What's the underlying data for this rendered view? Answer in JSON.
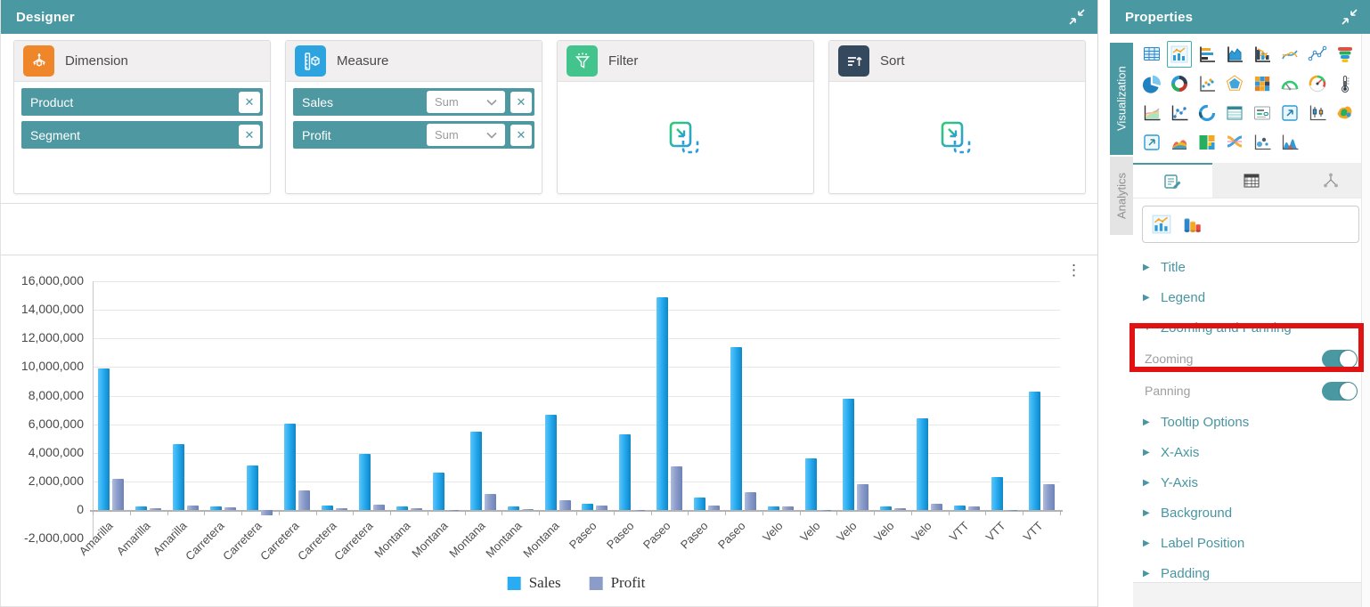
{
  "colors": {
    "accent_teal": "#4a98a2",
    "highlight_red": "#e11212",
    "sales_blue": "#29acf1",
    "profit_slate": "#8b9cc9",
    "dimension_orange": "#f0862a",
    "measure_blue": "#2da4e0",
    "filter_green": "#43c48d",
    "sort_navy": "#34495e"
  },
  "designer": {
    "title": "Designer",
    "dimension": {
      "label": "Dimension",
      "fields": [
        {
          "name": "Product"
        },
        {
          "name": "Segment"
        }
      ]
    },
    "measure": {
      "label": "Measure",
      "fields": [
        {
          "name": "Sales",
          "aggregation": "Sum"
        },
        {
          "name": "Profit",
          "aggregation": "Sum"
        }
      ]
    },
    "filter": {
      "label": "Filter"
    },
    "sort": {
      "label": "Sort"
    }
  },
  "properties": {
    "title": "Properties",
    "side_tabs": [
      {
        "label": "Visualization",
        "active": true
      },
      {
        "label": "Analytics",
        "active": false
      }
    ],
    "visualization_icons": [
      "table-widget",
      "column-chart",
      "bar-chart",
      "area-chart",
      "pareto-chart",
      "spline-chart",
      "line-chart",
      "funnel-chart",
      "pie-chart",
      "doughnut-chart",
      "scatter-chart",
      "polar-chart",
      "heatmap-chart",
      "semi-gauge",
      "circular-gauge",
      "thermometer-gauge",
      "combination-chart",
      "radar-chart",
      "progress-circle",
      "pivot-grid",
      "card-widget",
      "embed-widget",
      "box-whisker-chart",
      "map-widget",
      "image-widget",
      "spline-area-chart",
      "treemap-chart",
      "sankey-chart",
      "bubble-chart",
      "histogram-chart"
    ],
    "selected_icon": "column-chart",
    "property_tabs": [
      "general-settings",
      "data-grid",
      "axes"
    ],
    "subtype_icons": [
      "column-2d",
      "column-3d"
    ],
    "sections": [
      {
        "label": "Title",
        "expanded": false
      },
      {
        "label": "Legend",
        "expanded": false
      },
      {
        "label": "Zooming and Panning",
        "expanded": true
      },
      {
        "label": "Tooltip Options",
        "expanded": false
      },
      {
        "label": "X-Axis",
        "expanded": false
      },
      {
        "label": "Y-Axis",
        "expanded": false
      },
      {
        "label": "Background",
        "expanded": false
      },
      {
        "label": "Label Position",
        "expanded": false
      },
      {
        "label": "Padding",
        "expanded": false
      }
    ],
    "toggles": [
      {
        "label": "Zooming",
        "on": true,
        "highlighted": true
      },
      {
        "label": "Panning",
        "on": true,
        "highlighted": false
      }
    ]
  },
  "chart_data": {
    "type": "bar",
    "title": "",
    "xlabel": "",
    "ylabel": "",
    "categories": [
      "Amarilla",
      "Amarilla",
      "Amarilla",
      "Carretera",
      "Carretera",
      "Carretera",
      "Carretera",
      "Carretera",
      "Montana",
      "Montana",
      "Montana",
      "Montana",
      "Montana",
      "Paseo",
      "Paseo",
      "Paseo",
      "Paseo",
      "Paseo",
      "Velo",
      "Velo",
      "Velo",
      "Velo",
      "Velo",
      "VTT",
      "VTT",
      "VTT"
    ],
    "series": [
      {
        "name": "Sales",
        "color": "#29acf1",
        "values": [
          9900000,
          230000,
          4600000,
          270000,
          3100000,
          6050000,
          300000,
          3900000,
          230000,
          2600000,
          5500000,
          270000,
          6650000,
          440000,
          5300000,
          14900000,
          900000,
          11400000,
          250000,
          3600000,
          7800000,
          270000,
          6400000,
          300000,
          2300000,
          8250000
        ]
      },
      {
        "name": "Profit",
        "color": "#8b9cc9",
        "values": [
          2200000,
          150000,
          310000,
          200000,
          -350000,
          1400000,
          110000,
          380000,
          140000,
          -80000,
          1130000,
          90000,
          700000,
          330000,
          -70000,
          3060000,
          310000,
          1230000,
          280000,
          -90000,
          1810000,
          150000,
          420000,
          250000,
          -90000,
          1830000
        ]
      }
    ],
    "ylim": [
      -2000000,
      16000000
    ],
    "ytick_step": 2000000,
    "grid": true,
    "legend_position": "bottom"
  }
}
